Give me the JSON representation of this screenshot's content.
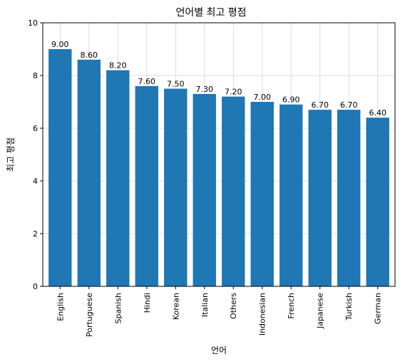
{
  "chart_data": {
    "type": "bar",
    "title": "언어별 최고 평점",
    "xlabel": "언어",
    "ylabel": "최고 평점",
    "ylim": [
      0,
      10
    ],
    "yticks": [
      0,
      2,
      4,
      6,
      8,
      10
    ],
    "grid": true,
    "categories": [
      "English",
      "Portuguese",
      "Spanish",
      "Hindi",
      "Korean",
      "Italian",
      "Others",
      "Indonesian",
      "French",
      "Japanese",
      "Turkish",
      "German"
    ],
    "values": [
      9.0,
      8.6,
      8.2,
      7.6,
      7.5,
      7.3,
      7.2,
      7.0,
      6.9,
      6.7,
      6.7,
      6.4
    ],
    "value_labels": [
      "9.00",
      "8.60",
      "8.20",
      "7.60",
      "7.50",
      "7.30",
      "7.20",
      "7.00",
      "6.90",
      "6.70",
      "6.70",
      "6.40"
    ],
    "bar_color": "#1f77b4",
    "grid_color": "#d3d3d3"
  }
}
